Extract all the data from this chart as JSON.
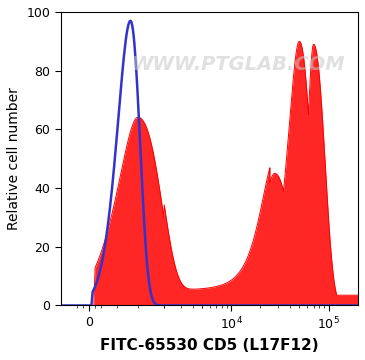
{
  "title": "FITC-65530 CD5 (L17F12)",
  "ylabel": "Relative cell number",
  "watermark": "WWW.PTGLAB.COM",
  "ylim": [
    0,
    100
  ],
  "yticks": [
    0,
    20,
    40,
    60,
    80,
    100
  ],
  "blue_color": "#3333cc",
  "red_color": "#ff0000",
  "background_color": "#ffffff",
  "watermark_color": "#c8c8c8",
  "watermark_alpha": 0.55,
  "watermark_fontsize": 14,
  "title_fontsize": 11,
  "ylabel_fontsize": 10,
  "tick_fontsize": 9,
  "note": "x-axis uses logicle/biex scale: linear near 0, then log. We simulate with custom linear mapping. 0 tick at ~x=0.18 of axis, 10^4 at ~0.54, 10^5 at ~0.80"
}
